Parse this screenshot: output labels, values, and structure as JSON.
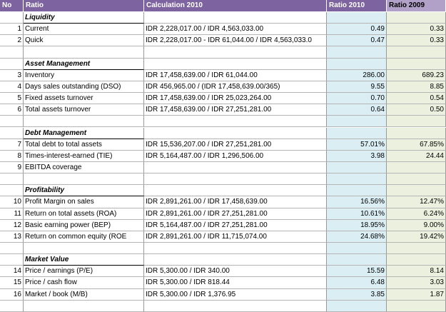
{
  "header": {
    "no": "No",
    "ratio": "Ratio",
    "calculation": "Calculation 2010",
    "ratio2010": "Ratio 2010",
    "ratio2009": "Ratio 2009"
  },
  "rows": [
    {
      "type": "section",
      "title": "Liquidity"
    },
    {
      "type": "data",
      "no": "1",
      "name": "Current",
      "calc": "IDR 2,228,017.00 / IDR 4,563,033.00",
      "r2010": "0.49",
      "r2009": "0.33"
    },
    {
      "type": "data",
      "no": "2",
      "name": "Quick",
      "calc": "IDR 2,228,017.00 - IDR 61,044.00 / IDR 4,563,033.0",
      "r2010": "0.47",
      "r2009": "0.33"
    },
    {
      "type": "blank"
    },
    {
      "type": "section",
      "title": "Asset Management"
    },
    {
      "type": "data",
      "no": "3",
      "name": "Inventory",
      "calc": "IDR 17,458,639.00 / IDR 61,044.00",
      "r2010": "286.00",
      "r2009": "689.23"
    },
    {
      "type": "data",
      "no": "4",
      "name": "Days sales outstanding (DSO)",
      "calc": "IDR 456,965.00 / (IDR 17,458,639.00/365)",
      "r2010": "9.55",
      "r2009": "8.85"
    },
    {
      "type": "data",
      "no": "5",
      "name": "Fixed assets turnover",
      "calc": "IDR 17,458,639.00 / IDR 25,023,264.00",
      "r2010": "0.70",
      "r2009": "0.54"
    },
    {
      "type": "data",
      "no": "6",
      "name": "Total assets turnover",
      "calc": "IDR 17,458,639.00 / IDR 27,251,281.00",
      "r2010": "0.64",
      "r2009": "0.50"
    },
    {
      "type": "blank"
    },
    {
      "type": "section",
      "title": "Debt Management"
    },
    {
      "type": "data",
      "no": "7",
      "name": "Total debt to total assets",
      "calc": "IDR 15,536,207.00 / IDR 27,251,281.00",
      "r2010": "57.01%",
      "r2009": "67.85%"
    },
    {
      "type": "data",
      "no": "8",
      "name": "Times-interest-earned (TIE)",
      "calc": "IDR 5,164,487.00 / IDR 1,296,506.00",
      "r2010": "3.98",
      "r2009": "24.44"
    },
    {
      "type": "data",
      "no": "9",
      "name": "EBITDA coverage",
      "calc": "",
      "r2010": "",
      "r2009": ""
    },
    {
      "type": "blank"
    },
    {
      "type": "section",
      "title": "Profitability"
    },
    {
      "type": "data",
      "no": "10",
      "name": "Profit Margin on sales",
      "calc": "IDR 2,891,261.00 / IDR 17,458,639.00",
      "r2010": "16.56%",
      "r2009": "12.47%"
    },
    {
      "type": "data",
      "no": "11",
      "name": "Return on total assets (ROA)",
      "calc": "IDR 2,891,261.00 / IDR 27,251,281.00",
      "r2010": "10.61%",
      "r2009": "6.24%"
    },
    {
      "type": "data",
      "no": "12",
      "name": "Basic earning power (BEP)",
      "calc": "IDR 5,164,487.00 / IDR 27,251,281.00",
      "r2010": "18.95%",
      "r2009": "9.00%"
    },
    {
      "type": "data",
      "no": "13",
      "name": "Return on common equity (ROE",
      "calc": "IDR 2,891,261.00 / IDR 11,715,074.00",
      "r2010": "24.68%",
      "r2009": "19.42%"
    },
    {
      "type": "blank"
    },
    {
      "type": "section",
      "title": "Market Value"
    },
    {
      "type": "data",
      "no": "14",
      "name": "Price / earnings (P/E)",
      "calc": " IDR 5,300.00 / IDR 340.00",
      "r2010": "15.59",
      "r2009": "8.14"
    },
    {
      "type": "data",
      "no": "15",
      "name": "Price / cash flow",
      "calc": " IDR 5,300.00 / IDR 818.44",
      "r2010": "6.48",
      "r2009": "3.03"
    },
    {
      "type": "data",
      "no": "16",
      "name": "Market / book (M/B)",
      "calc": " IDR 5,300.00 / IDR 1,376.95",
      "r2010": "3.85",
      "r2009": "1.87"
    },
    {
      "type": "blank"
    }
  ]
}
